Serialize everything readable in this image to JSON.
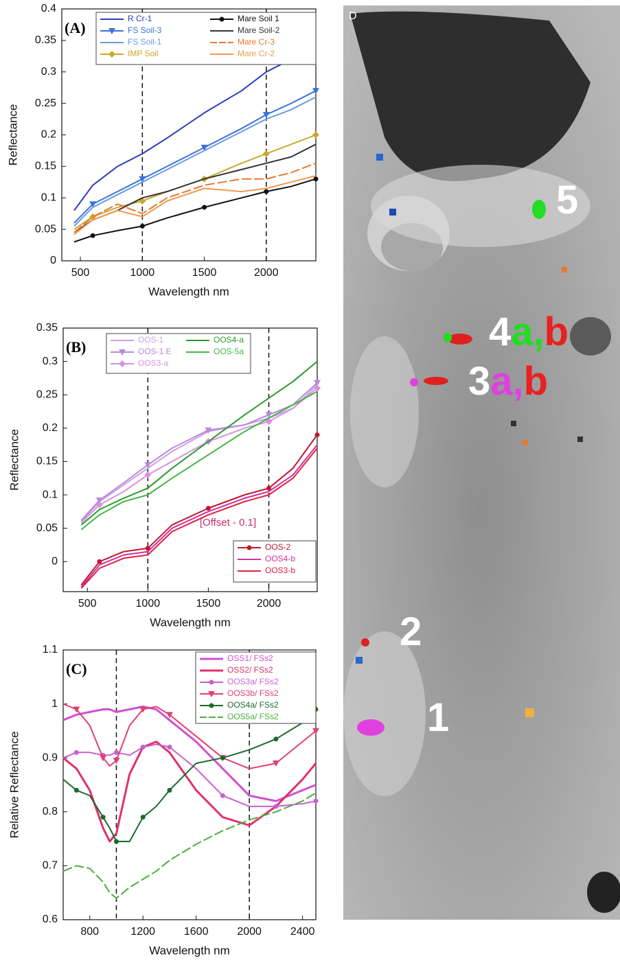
{
  "chart_data": [
    {
      "type": "line",
      "panel_label": "(A)",
      "x_label": "Wavelength nm",
      "y_label": "Reflectance",
      "xlim": [
        350,
        2400
      ],
      "ylim": [
        0,
        0.4
      ],
      "xticks": [
        500,
        1000,
        1500,
        2000
      ],
      "yticks": [
        0,
        0.05,
        0.1,
        0.15,
        0.2,
        0.25,
        0.3,
        0.35,
        0.4
      ],
      "reference_lines": [
        1000,
        2000
      ],
      "x": [
        450,
        600,
        800,
        1000,
        1200,
        1500,
        1800,
        2000,
        2200,
        2400
      ],
      "series": [
        {
          "name": "R Cr-1",
          "color": "#2a3cc0",
          "values": [
            0.08,
            0.12,
            0.15,
            0.17,
            0.195,
            0.235,
            0.27,
            0.3,
            0.32,
            0.34
          ]
        },
        {
          "name": "FS Soil-3",
          "color": "#3a72d8",
          "marker": "triangle",
          "values": [
            0.06,
            0.09,
            0.11,
            0.13,
            0.15,
            0.18,
            0.21,
            0.232,
            0.25,
            0.27
          ]
        },
        {
          "name": "FS Soil-1",
          "color": "#6a9ae4",
          "values": [
            0.055,
            0.085,
            0.105,
            0.125,
            0.145,
            0.175,
            0.205,
            0.225,
            0.24,
            0.26
          ]
        },
        {
          "name": "IMP Soil",
          "color": "#c8a82a",
          "marker": "diamond",
          "values": [
            0.05,
            0.07,
            0.085,
            0.095,
            0.11,
            0.13,
            0.155,
            0.17,
            0.185,
            0.2
          ]
        },
        {
          "name": "Mare Soil 1",
          "color": "#111111",
          "marker": "circle",
          "values": [
            0.03,
            0.04,
            0.048,
            0.055,
            0.068,
            0.085,
            0.1,
            0.11,
            0.118,
            0.13
          ]
        },
        {
          "name": "Mare Soil-2",
          "color": "#333333",
          "values": [
            0.045,
            0.065,
            0.08,
            0.1,
            0.11,
            0.13,
            0.145,
            0.155,
            0.165,
            0.185
          ]
        },
        {
          "name": "Mare Cr-3",
          "color": "#e87830",
          "dashed": true,
          "values": [
            0.045,
            0.07,
            0.09,
            0.075,
            0.1,
            0.12,
            0.13,
            0.13,
            0.14,
            0.155
          ]
        },
        {
          "name": "Mare Cr-2",
          "color": "#f09a50",
          "values": [
            0.042,
            0.065,
            0.08,
            0.07,
            0.095,
            0.115,
            0.11,
            0.115,
            0.125,
            0.135
          ]
        }
      ]
    },
    {
      "type": "line",
      "panel_label": "(B)",
      "x_label": "Wavelength nm",
      "y_label": "Reflectance",
      "annotation": "[Offset - 0.1]",
      "xlim": [
        300,
        2400
      ],
      "ylim": [
        -0.045,
        0.35
      ],
      "xticks": [
        500,
        1000,
        1500,
        2000
      ],
      "yticks": [
        0,
        0.05,
        0.1,
        0.15,
        0.2,
        0.25,
        0.3,
        0.35
      ],
      "reference_lines": [
        1000,
        2000
      ],
      "x": [
        450,
        600,
        800,
        1000,
        1200,
        1500,
        1800,
        2000,
        2200,
        2400
      ],
      "series": [
        {
          "name": "OOS-1",
          "color": "#c8a0e4",
          "values": [
            0.06,
            0.09,
            0.115,
            0.14,
            0.165,
            0.195,
            0.205,
            0.215,
            0.23,
            0.265
          ]
        },
        {
          "name": "OOS-1 E",
          "color": "#b88ad8",
          "marker": "triangle",
          "values": [
            0.062,
            0.092,
            0.118,
            0.145,
            0.17,
            0.197,
            0.205,
            0.22,
            0.235,
            0.268
          ]
        },
        {
          "name": "OOS3-a",
          "color": "#d890e0",
          "marker": "diamond",
          "values": [
            0.058,
            0.085,
            0.105,
            0.13,
            0.15,
            0.18,
            0.2,
            0.21,
            0.23,
            0.26
          ]
        },
        {
          "name": "OOS4-a",
          "color": "#2a9a2a",
          "values": [
            0.055,
            0.078,
            0.095,
            0.11,
            0.14,
            0.18,
            0.22,
            0.245,
            0.27,
            0.3
          ]
        },
        {
          "name": "OOS-5a",
          "color": "#44b444",
          "values": [
            0.048,
            0.07,
            0.09,
            0.1,
            0.125,
            0.16,
            0.195,
            0.215,
            0.235,
            0.255
          ]
        },
        {
          "name": "OOS-2",
          "color": "#c01830",
          "marker": "circle",
          "values": [
            -0.035,
            0.0,
            0.015,
            0.02,
            0.055,
            0.08,
            0.1,
            0.11,
            0.14,
            0.19
          ]
        },
        {
          "name": "OOS4-b",
          "color": "#d030a0",
          "values": [
            -0.038,
            -0.005,
            0.01,
            0.015,
            0.05,
            0.075,
            0.095,
            0.105,
            0.13,
            0.175
          ]
        },
        {
          "name": "OOS3-b",
          "color": "#e02040",
          "values": [
            -0.04,
            -0.01,
            0.005,
            0.01,
            0.045,
            0.07,
            0.09,
            0.1,
            0.125,
            0.17
          ]
        }
      ]
    },
    {
      "type": "line",
      "panel_label": "(C)",
      "x_label": "Wavelength nm",
      "y_label": "Relative Reflectance",
      "xlim": [
        600,
        2500
      ],
      "ylim": [
        0.6,
        1.1
      ],
      "xticks": [
        800,
        1200,
        1600,
        2000,
        2400
      ],
      "yticks": [
        0.6,
        0.7,
        0.8,
        0.9,
        1,
        1.1
      ],
      "reference_lines": [
        1000,
        2000
      ],
      "x": [
        600,
        700,
        800,
        900,
        950,
        1000,
        1100,
        1200,
        1300,
        1400,
        1600,
        1800,
        2000,
        2200,
        2400,
        2500
      ],
      "series": [
        {
          "name": "OSS1/ FSs2",
          "color": "#d050d0",
          "line_width": 3,
          "values": [
            0.97,
            0.98,
            0.985,
            0.99,
            0.99,
            0.985,
            0.99,
            0.995,
            0.99,
            0.97,
            0.93,
            0.88,
            0.83,
            0.82,
            0.84,
            0.85
          ]
        },
        {
          "name": "OSS2/ FSs2",
          "color": "#e0306a",
          "line_width": 3,
          "values": [
            0.9,
            0.88,
            0.84,
            0.77,
            0.745,
            0.76,
            0.87,
            0.92,
            0.93,
            0.91,
            0.84,
            0.79,
            0.775,
            0.81,
            0.86,
            0.89
          ]
        },
        {
          "name": "OOS3a/ FSs2",
          "color": "#c860d0",
          "marker": "circle",
          "values": [
            0.9,
            0.91,
            0.91,
            0.905,
            0.905,
            0.91,
            0.905,
            0.92,
            0.925,
            0.92,
            0.88,
            0.83,
            0.81,
            0.81,
            0.815,
            0.82
          ]
        },
        {
          "name": "OOS3b/ FSs2",
          "color": "#e04070",
          "marker": "triangle",
          "values": [
            1.0,
            0.99,
            0.96,
            0.9,
            0.885,
            0.895,
            0.96,
            0.99,
            0.995,
            0.98,
            0.94,
            0.9,
            0.88,
            0.89,
            0.93,
            0.95
          ]
        },
        {
          "name": "OOS4a/ FSs2",
          "color": "#1a6a2a",
          "marker": "circle",
          "values": [
            0.86,
            0.84,
            0.83,
            0.79,
            0.77,
            0.745,
            0.745,
            0.79,
            0.81,
            0.84,
            0.89,
            0.9,
            0.915,
            0.935,
            0.965,
            0.99
          ]
        },
        {
          "name": "OOS5a/ FSs2",
          "color": "#4caf3a",
          "dashed": true,
          "values": [
            0.69,
            0.7,
            0.695,
            0.67,
            0.65,
            0.64,
            0.66,
            0.675,
            0.69,
            0.71,
            0.74,
            0.765,
            0.785,
            0.8,
            0.82,
            0.835
          ]
        }
      ]
    }
  ],
  "image_panel": {
    "label": "D",
    "annotations": [
      {
        "parts": [
          "5"
        ]
      },
      {
        "parts": [
          "4",
          "a,",
          "b"
        ]
      },
      {
        "parts": [
          "3",
          "a,",
          "b"
        ]
      },
      {
        "parts": [
          "2"
        ]
      },
      {
        "parts": [
          "1"
        ]
      }
    ]
  }
}
